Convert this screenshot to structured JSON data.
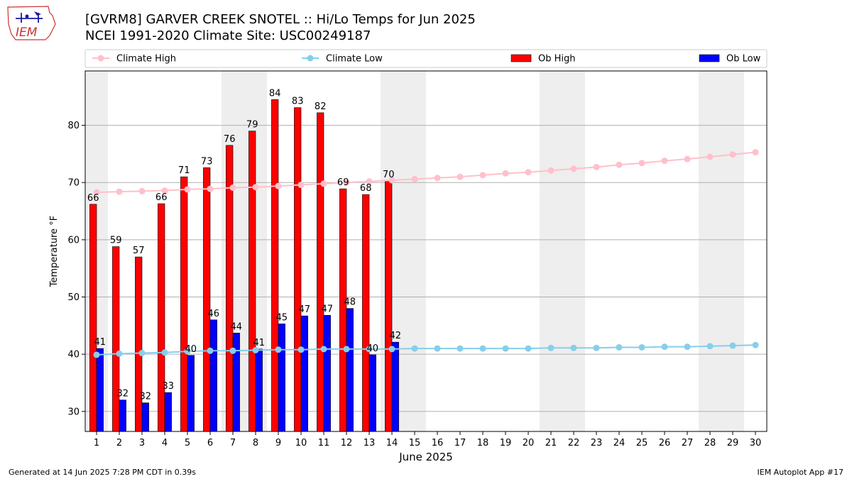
{
  "header": {
    "title_line1": "[GVRM8] GARVER CREEK SNOTEL :: Hi/Lo Temps for Jun 2025",
    "title_line2": "NCEI 1991-2020 Climate Site: USC00249187",
    "logo_text": "IEM"
  },
  "footer": {
    "generated": "Generated at 14 Jun 2025 7:28 PM CDT in 0.39s",
    "app": "IEM Autoplot App #17"
  },
  "chart_data": {
    "type": "bar",
    "xlabel": "June 2025",
    "ylabel": "Temperature °F",
    "ylim": [
      26.5,
      89.5
    ],
    "yticks": [
      30,
      40,
      50,
      60,
      70,
      80
    ],
    "grid": true,
    "legend": {
      "placement": "top",
      "entries": [
        "Climate High",
        "Climate Low",
        "Ob High",
        "Ob Low"
      ]
    },
    "weekend_shading_days": [
      1,
      7,
      8,
      14,
      15,
      21,
      22,
      28,
      29
    ],
    "days": [
      1,
      2,
      3,
      4,
      5,
      6,
      7,
      8,
      9,
      10,
      11,
      12,
      13,
      14,
      15,
      16,
      17,
      18,
      19,
      20,
      21,
      22,
      23,
      24,
      25,
      26,
      27,
      28,
      29,
      30
    ],
    "series": [
      {
        "name": "Ob High",
        "kind": "bar",
        "color": "#ff0000",
        "values": [
          66.2,
          58.8,
          57.0,
          66.3,
          71.0,
          72.6,
          76.5,
          79.0,
          84.5,
          83.1,
          82.2,
          68.9,
          67.9,
          70.3
        ],
        "labels": [
          "66",
          "59",
          "57",
          "66",
          "71",
          "73",
          "76",
          "79",
          "84",
          "83",
          "82",
          "69",
          "68",
          "70"
        ]
      },
      {
        "name": "Ob Low",
        "kind": "bar",
        "color": "#0000ff",
        "values": [
          41.0,
          32.0,
          31.5,
          33.3,
          39.8,
          46.0,
          43.7,
          40.9,
          45.3,
          46.7,
          46.8,
          48.0,
          39.9,
          42.1
        ],
        "labels": [
          "41",
          "32",
          "32",
          "33",
          "40",
          "46",
          "44",
          "41",
          "45",
          "47",
          "47",
          "48",
          "40",
          "42"
        ]
      },
      {
        "name": "Climate High",
        "kind": "line",
        "color": "#ffc0cb",
        "values": [
          68.3,
          68.4,
          68.5,
          68.6,
          68.8,
          68.9,
          69.1,
          69.2,
          69.4,
          69.6,
          69.8,
          70.0,
          70.2,
          70.4,
          70.6,
          70.8,
          71.0,
          71.3,
          71.6,
          71.8,
          72.1,
          72.4,
          72.7,
          73.1,
          73.4,
          73.8,
          74.1,
          74.5,
          74.9,
          75.3
        ]
      },
      {
        "name": "Climate Low",
        "kind": "line",
        "color": "#87ceeb",
        "values": [
          39.9,
          40.1,
          40.2,
          40.3,
          40.5,
          40.6,
          40.6,
          40.7,
          40.8,
          40.8,
          40.9,
          40.9,
          40.9,
          40.9,
          41.0,
          41.0,
          41.0,
          41.0,
          41.0,
          41.0,
          41.1,
          41.1,
          41.1,
          41.2,
          41.2,
          41.3,
          41.3,
          41.4,
          41.5,
          41.6
        ]
      }
    ]
  }
}
